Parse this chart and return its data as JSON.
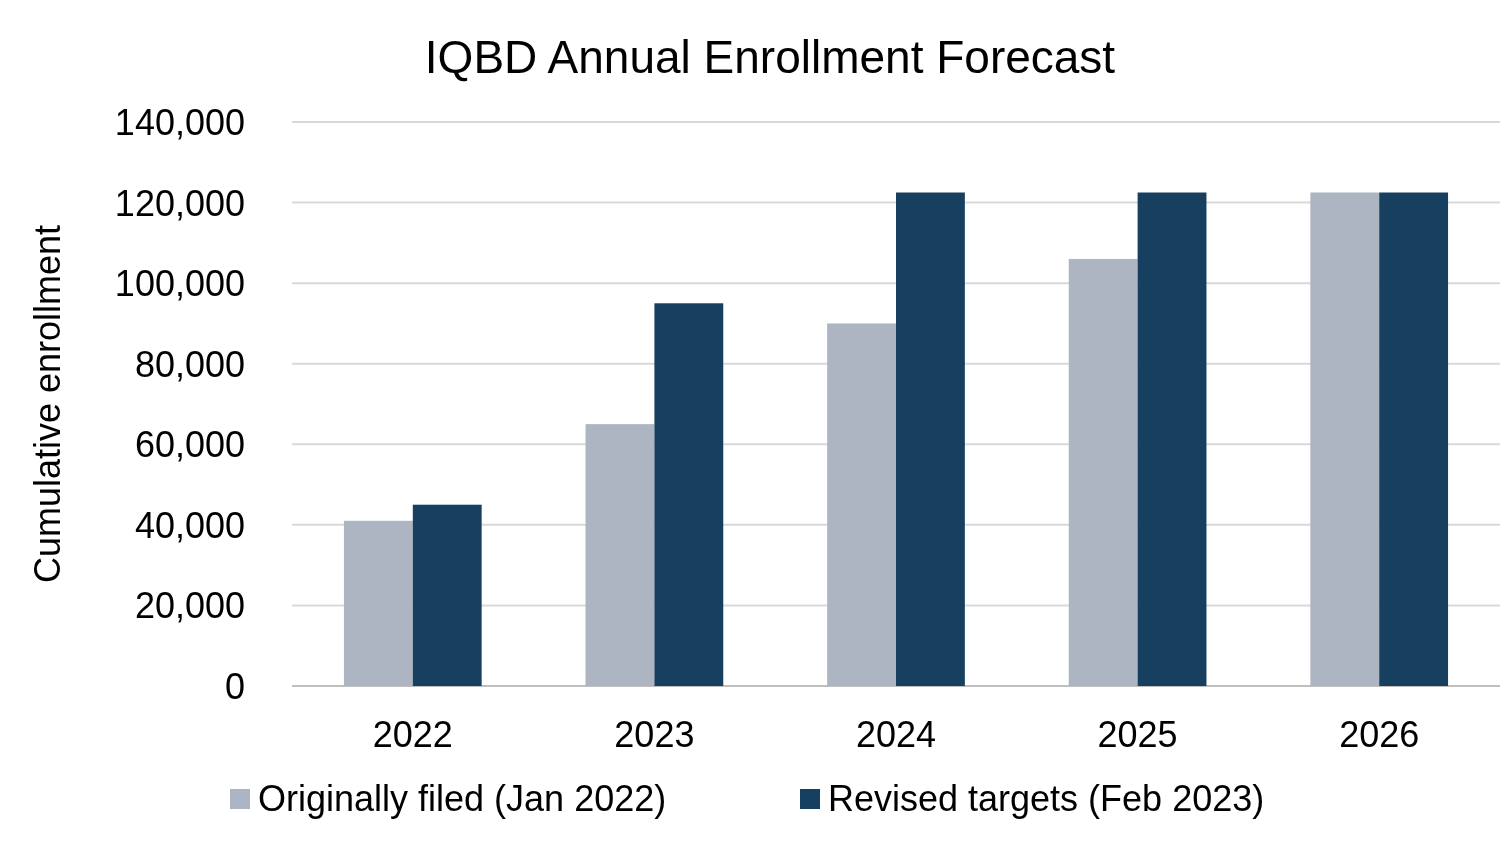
{
  "chart_data": {
    "type": "bar",
    "title": "IQBD Annual Enrollment Forecast",
    "ylabel": "Cumulative enrollment",
    "categories": [
      "2022",
      "2023",
      "2024",
      "2025",
      "2026"
    ],
    "series": [
      {
        "name": "Originally filed (Jan 2022)",
        "color": "#adb5c2",
        "values": [
          41000,
          65000,
          90000,
          106000,
          122500
        ]
      },
      {
        "name": "Revised targets (Feb 2023)",
        "color": "#173f5f",
        "values": [
          45000,
          95000,
          122500,
          122500,
          122500
        ]
      }
    ],
    "ylim": [
      0,
      140000
    ],
    "yticks": [
      {
        "value": 0,
        "label": "0"
      },
      {
        "value": 20000,
        "label": "20,000"
      },
      {
        "value": 40000,
        "label": "40,000"
      },
      {
        "value": 60000,
        "label": "60,000"
      },
      {
        "value": 80000,
        "label": "80,000"
      },
      {
        "value": 100000,
        "label": "100,000"
      },
      {
        "value": 120000,
        "label": "120,000"
      },
      {
        "value": 140000,
        "label": "140,000"
      }
    ],
    "grid": "y",
    "legend": "bottom"
  }
}
